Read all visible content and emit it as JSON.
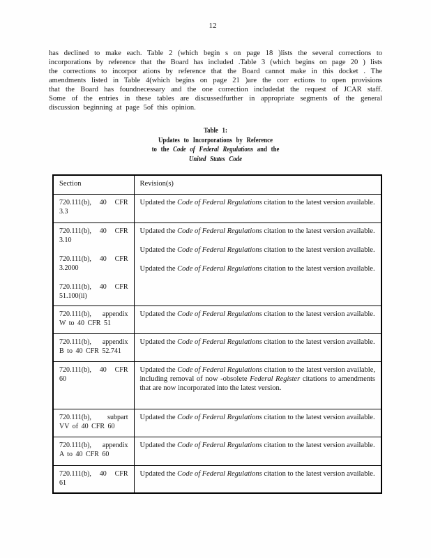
{
  "page_number": "12",
  "paragraph": {
    "lines": [
      "has declined to make each. Table 2 (which begin s on page 18 )lists the several corrections to",
      "incorporations by reference that the Board has included .Table 3 (which begins on page 20 ) lists",
      "the corrections to incorpor ations by reference that the Board cannot make in this docket . The",
      "amendments listed in Table 4(which begins on page 21 )are the corr ections to open provisions",
      "that the Board has foundnecessary and the one correction includedat the request of JCAR staff.",
      "Some of the entries in these tables are discussedfurther in appropriate segments of the general",
      "discussion beginning at page 5of this opinion."
    ]
  },
  "table_title": {
    "line1": "Table 1:",
    "line2": "Updates to Incorporations by Reference",
    "line3": {
      "pre": "to the ",
      "italic": "Code of Federal Regulations",
      "post": " and the"
    },
    "line4": {
      "italic": "United States Code"
    }
  },
  "table": {
    "header": {
      "section": "Section",
      "revision": "Revision(s)"
    },
    "entries": [
      {
        "sec": [
          "720.111(b), 40 CFR",
          "3.3"
        ],
        "rev": [
          "Updated the ",
          "Code of Federal Regulations",
          " citation to the latest version available.",
          "",
          ""
        ]
      },
      {
        "sec": [
          "720.111(b), 40 CFR",
          "3.10"
        ],
        "rev": [
          "Updated the ",
          "Code of Federal Regulations",
          " citation to the latest version available.",
          "",
          ""
        ]
      },
      {
        "sec": [
          "720.111(b), 40 CFR",
          "3.2000"
        ],
        "rev": [
          "Updated the ",
          "Code of Federal Regulations",
          " citation to the latest version available.",
          "",
          ""
        ]
      },
      {
        "sec": [
          "720.111(b), 40 CFR",
          "51.100(ii)"
        ],
        "rev": [
          "Updated the ",
          "Code of Federal Regulations",
          " citation to the latest version available.",
          "",
          ""
        ]
      },
      {
        "sec": [
          "720.111(b), appendix",
          "W to 40 CFR 51"
        ],
        "rev": [
          "Updated the ",
          "Code of Federal Regulations",
          " citation to the latest version available.",
          "",
          ""
        ]
      },
      {
        "sec": [
          "720.111(b), appendix",
          "B to 40 CFR 52.741"
        ],
        "rev": [
          "Updated the ",
          "Code of Federal Regulations",
          " citation to the latest version available.",
          "",
          ""
        ]
      },
      {
        "sec": [
          "720.111(b), 40 CFR",
          "60"
        ],
        "rev": [
          "Updated the ",
          "Code of Federal Regulations",
          " citation to the latest version available, including removal of now -obsolete ",
          "Federal Register",
          " citations to amendments that are now incorporated into the latest version."
        ]
      },
      {
        "sec": [
          "720.111(b), subpart",
          "VV of 40 CFR 60"
        ],
        "rev": [
          "Updated the ",
          "Code of Federal Regulations",
          " citation to the latest version available.",
          "",
          ""
        ]
      },
      {
        "sec": [
          "720.111(b), appendix",
          "A to 40 CFR 60"
        ],
        "rev": [
          "Updated the ",
          "Code of Federal Regulations",
          " citation to the latest version available.",
          "",
          ""
        ]
      },
      {
        "sec": [
          "720.111(b), 40 CFR",
          "61"
        ],
        "rev": [
          "Updated the ",
          "Code of Federal Regulations",
          " citation to the latest version available.",
          "",
          ""
        ]
      }
    ]
  },
  "colors": {
    "text": "#141414",
    "border": "#000000",
    "background": "#fefefe"
  }
}
